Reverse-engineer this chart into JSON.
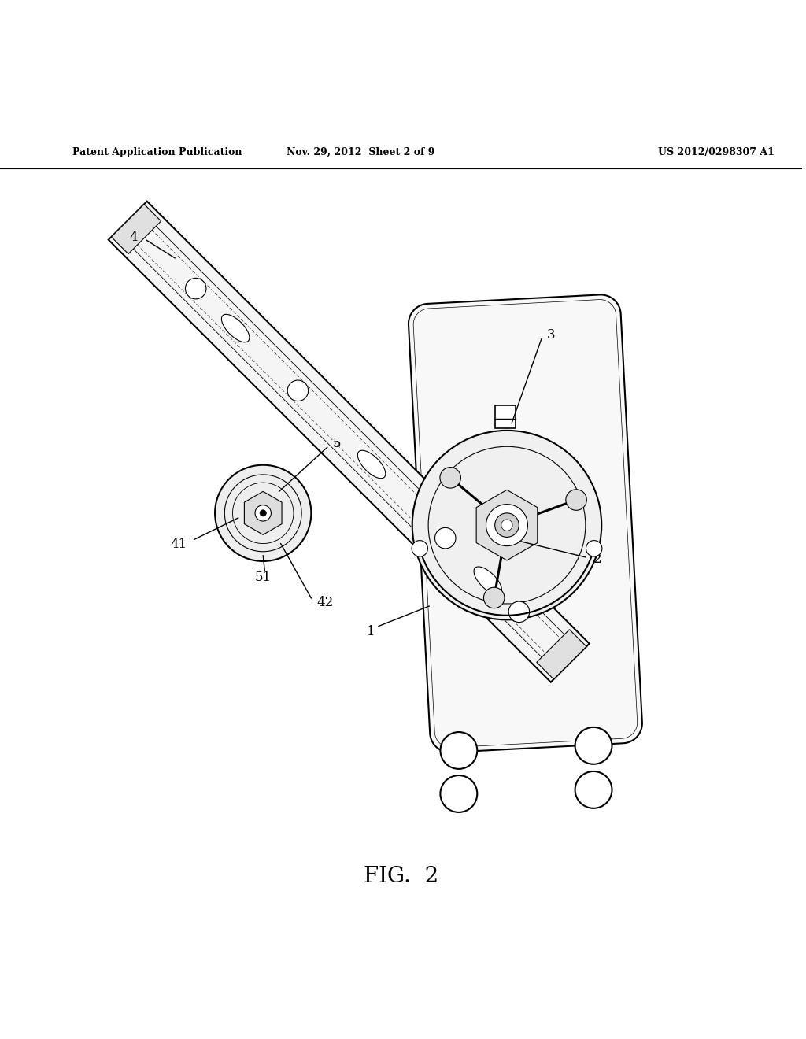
{
  "title_left": "Patent Application Publication",
  "title_mid": "Nov. 29, 2012  Sheet 2 of 9",
  "title_right": "US 2012/0298307 A1",
  "fig_label": "FIG.  2",
  "background_color": "#ffffff",
  "line_color": "#000000"
}
